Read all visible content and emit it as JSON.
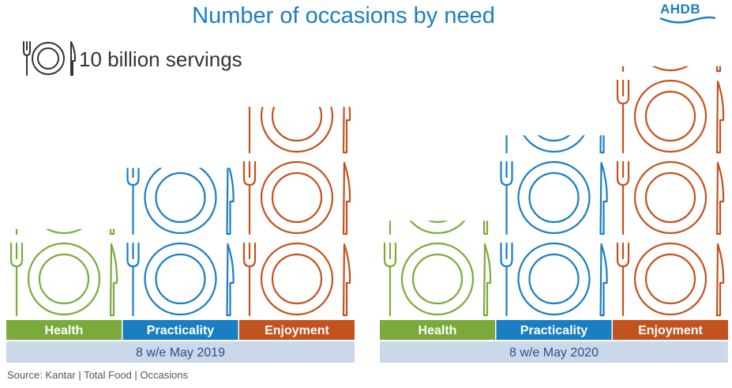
{
  "header": {
    "title": "Number of occasions by need",
    "logo_text": "AHDB",
    "legend_text": "10 billion servings",
    "source": "Source: Kantar | Total Food | Occasions"
  },
  "colors": {
    "Health": "#7aab3a",
    "Practicality": "#1a7ec2",
    "Enjoyment": "#c2531e",
    "period_band": "#cbd8ea"
  },
  "chart_data": {
    "type": "bar",
    "title": "Number of occasions by need",
    "categories": [
      "Health",
      "Practicality",
      "Enjoyment"
    ],
    "unit": "10 billion servings",
    "series": [
      {
        "name": "8 w/e May 2019",
        "values": [
          1.1,
          1.85,
          2.6
        ]
      },
      {
        "name": "8 w/e May 2020",
        "values": [
          1.2,
          2.25,
          3.1
        ]
      }
    ]
  }
}
